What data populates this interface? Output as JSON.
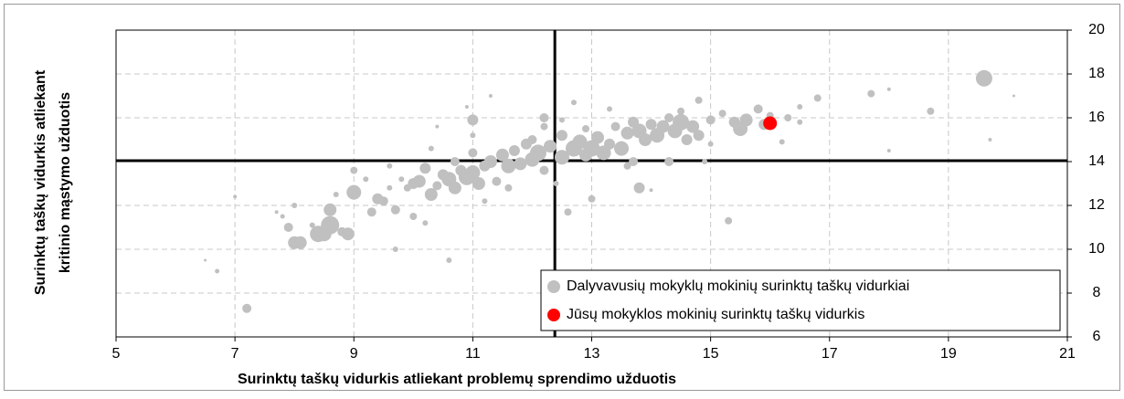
{
  "chart_data": {
    "type": "scatter",
    "xlabel": "Surinktų taškų vidurkis atliekant problemų sprendimo užduotis",
    "ylabel": [
      "Surinktų taškų vidurkis atliekant",
      "kritinio mąstymo užduotis"
    ],
    "xlim": [
      5,
      21
    ],
    "xticks": [
      5,
      7,
      9,
      11,
      13,
      15,
      17,
      19,
      21
    ],
    "ylim": [
      6,
      20
    ],
    "yticks": [
      6,
      8,
      10,
      12,
      14,
      16,
      18,
      20
    ],
    "grid": true,
    "legend": "lower right",
    "vline": 12.38,
    "hline": 14.04,
    "series": [
      {
        "name": "Dalyvavusių mokyklų mokinių surinktų taškų vidurkiai",
        "color": "#c0c0c0",
        "x": [
          6.5,
          6.7,
          7.0,
          7.2,
          7.7,
          7.8,
          7.9,
          8.0,
          8.1,
          8.0,
          8.3,
          8.4,
          8.5,
          8.6,
          8.6,
          8.7,
          8.8,
          8.9,
          9.0,
          9.0,
          9.2,
          9.3,
          9.4,
          9.5,
          9.6,
          9.7,
          9.7,
          9.8,
          9.9,
          10.0,
          10.0,
          10.1,
          10.2,
          10.2,
          10.3,
          10.4,
          10.5,
          10.3,
          10.4,
          10.6,
          10.6,
          10.7,
          10.7,
          10.8,
          10.9,
          11.0,
          11.0,
          11.0,
          11.0,
          11.1,
          11.2,
          11.3,
          11.2,
          11.4,
          11.5,
          11.6,
          11.6,
          11.7,
          11.8,
          11.9,
          12.0,
          12.0,
          12.1,
          12.2,
          12.2,
          12.3,
          12.4,
          12.5,
          12.5,
          12.6,
          12.7,
          12.7,
          12.8,
          12.9,
          12.9,
          13.0,
          13.0,
          13.1,
          13.2,
          13.3,
          13.3,
          13.4,
          13.5,
          13.6,
          13.7,
          13.7,
          13.8,
          13.8,
          13.9,
          14.0,
          14.1,
          14.2,
          14.3,
          14.3,
          14.4,
          14.5,
          14.5,
          14.6,
          14.7,
          14.8,
          14.8,
          15.0,
          15.0,
          15.2,
          15.3,
          15.4,
          15.5,
          15.6,
          15.8,
          15.9,
          16.0,
          16.2,
          16.3,
          16.5,
          16.5,
          16.8,
          17.7,
          18.0,
          18.0,
          18.7,
          19.6,
          19.7,
          20.1,
          11.3,
          12.2,
          13.6,
          14.9,
          12.5,
          9.6,
          10.9,
          14.0
        ],
        "values": [
          9.5,
          9.0,
          12.4,
          7.3,
          11.7,
          11.5,
          11.0,
          10.3,
          10.3,
          12.0,
          11.1,
          10.7,
          10.7,
          11.1,
          11.8,
          12.5,
          10.8,
          10.7,
          12.6,
          13.6,
          13.2,
          11.7,
          12.3,
          12.2,
          12.8,
          11.8,
          10.0,
          13.2,
          12.8,
          11.5,
          13.0,
          13.1,
          11.2,
          13.7,
          12.5,
          12.9,
          13.4,
          14.6,
          15.6,
          9.5,
          13.2,
          12.8,
          14.0,
          13.6,
          13.3,
          13.5,
          14.4,
          15.2,
          15.9,
          13.0,
          13.8,
          14.0,
          12.2,
          13.1,
          14.3,
          13.8,
          12.8,
          14.5,
          13.9,
          14.8,
          14.1,
          15.0,
          14.4,
          13.6,
          16.0,
          14.7,
          13.0,
          14.2,
          15.2,
          11.7,
          14.6,
          16.7,
          14.9,
          14.3,
          15.5,
          14.6,
          12.3,
          15.1,
          14.4,
          16.4,
          14.8,
          15.6,
          14.6,
          15.3,
          14.0,
          15.8,
          15.4,
          12.8,
          15.0,
          15.7,
          15.2,
          15.6,
          16.0,
          14.0,
          15.4,
          15.8,
          16.3,
          15.0,
          15.6,
          15.2,
          16.8,
          15.9,
          14.8,
          16.2,
          11.3,
          15.8,
          15.5,
          15.9,
          16.4,
          15.7,
          16.1,
          14.9,
          16.0,
          15.8,
          16.5,
          16.9,
          17.1,
          17.3,
          14.5,
          16.3,
          17.8,
          15.0,
          17.0,
          17.0,
          15.6,
          13.8,
          14.0,
          15.9,
          13.8,
          16.5,
          12.7
        ],
        "sizes": [
          1.5,
          2.5,
          2,
          5,
          2,
          2.5,
          5,
          7,
          7,
          3,
          3,
          9,
          8,
          10,
          7,
          3,
          5,
          7,
          8,
          4,
          3,
          5,
          6,
          5,
          3,
          5,
          3,
          3,
          4,
          4,
          6,
          7,
          3,
          6,
          7,
          5,
          6,
          3,
          2,
          3,
          8,
          7,
          5,
          6,
          9,
          8,
          5,
          3,
          6,
          7,
          6,
          7,
          3,
          5,
          7,
          8,
          4,
          6,
          7,
          6,
          8,
          5,
          9,
          5,
          5,
          7,
          3,
          8,
          6,
          4,
          9,
          3,
          8,
          7,
          4,
          9,
          4,
          7,
          8,
          3,
          6,
          5,
          8,
          7,
          5,
          6,
          8,
          6,
          7,
          6,
          8,
          7,
          5,
          5,
          8,
          9,
          4,
          6,
          7,
          6,
          4,
          5,
          3,
          4,
          4,
          6,
          8,
          7,
          5,
          6,
          4,
          3,
          4,
          3,
          3,
          4,
          4,
          2,
          2,
          4,
          9,
          2,
          1.5,
          2,
          4,
          4,
          3,
          3,
          3,
          2,
          2
        ]
      },
      {
        "name": "Jūsų mokyklos mokinių surinktų taškų vidurkis",
        "color": "#ff0000",
        "x": [
          16.0
        ],
        "values": [
          15.75
        ],
        "sizes": [
          7.5
        ]
      }
    ]
  }
}
